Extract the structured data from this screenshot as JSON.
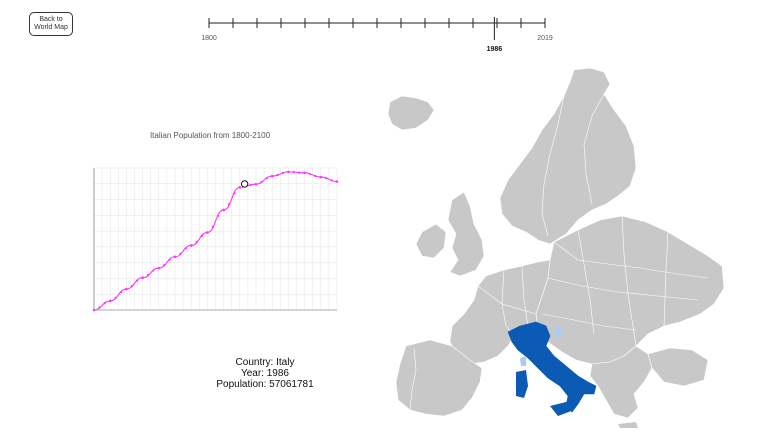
{
  "back_button": {
    "label": "Back to World Map"
  },
  "timeline": {
    "start_label": "1800",
    "end_label": "2019",
    "selected_label": "1986",
    "start_year": 1800,
    "end_year": 2019,
    "selected_year": 1986
  },
  "chart_title": "Italian Population from 1800-2100",
  "chart_data": {
    "type": "line",
    "title": "Italian Population from 1800-2100",
    "xlabel": "",
    "ylabel": "",
    "x": [
      1800,
      1820,
      1840,
      1860,
      1880,
      1900,
      1920,
      1940,
      1960,
      1980,
      2000,
      2020,
      2040,
      2060,
      2080,
      2100
    ],
    "series": [
      {
        "values": [
          18000000,
          20800000,
          24500000,
          28000000,
          31000000,
          34500000,
          38000000,
          42000000,
          49000000,
          56000000,
          57000000,
          59500000,
          60800000,
          60500000,
          59200000,
          57800000
        ]
      }
    ],
    "grid": true,
    "highlight": {
      "x": 1986,
      "y": 57061781
    }
  },
  "info": {
    "country_line": "Country: Italy",
    "year_line": "Year: 1986",
    "population_line": "Population: 57061781"
  },
  "colors": {
    "line": "#ff33ff",
    "highlight_country": "#0b5ab3",
    "other_countries": "#c8c8c8",
    "lakes": "#a9cdf2"
  }
}
